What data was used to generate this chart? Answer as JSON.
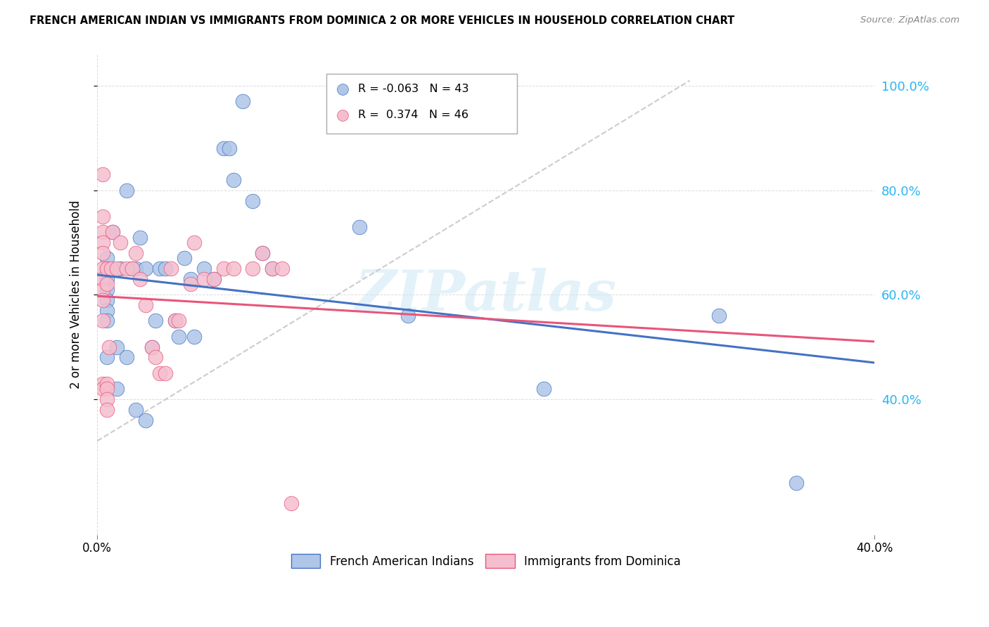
{
  "title": "FRENCH AMERICAN INDIAN VS IMMIGRANTS FROM DOMINICA 2 OR MORE VEHICLES IN HOUSEHOLD CORRELATION CHART",
  "source": "Source: ZipAtlas.com",
  "ylabel": "2 or more Vehicles in Household",
  "legend_blue_r": "R = -0.063",
  "legend_blue_n": "N = 43",
  "legend_pink_r": "R =  0.374",
  "legend_pink_n": "N = 46",
  "legend_blue_label": "French American Indians",
  "legend_pink_label": "Immigrants from Dominica",
  "blue_color": "#aec6e8",
  "blue_line_color": "#4472c4",
  "pink_color": "#f5bece",
  "pink_line_color": "#e8557a",
  "right_tick_color": "#29b6f6",
  "watermark": "ZIPatlas",
  "xlim": [
    0.0,
    0.4
  ],
  "ylim": [
    0.14,
    1.06
  ],
  "blue_x": [
    0.005,
    0.005,
    0.005,
    0.005,
    0.005,
    0.005,
    0.005,
    0.008,
    0.01,
    0.012,
    0.015,
    0.018,
    0.02,
    0.022,
    0.025,
    0.028,
    0.03,
    0.032,
    0.035,
    0.04,
    0.042,
    0.045,
    0.048,
    0.05,
    0.055,
    0.06,
    0.065,
    0.068,
    0.07,
    0.075,
    0.08,
    0.085,
    0.09,
    0.135,
    0.16,
    0.23,
    0.32,
    0.36,
    0.005,
    0.01,
    0.015,
    0.02,
    0.025
  ],
  "blue_y": [
    0.67,
    0.65,
    0.63,
    0.61,
    0.59,
    0.57,
    0.55,
    0.72,
    0.5,
    0.65,
    0.8,
    0.65,
    0.65,
    0.71,
    0.65,
    0.5,
    0.55,
    0.65,
    0.65,
    0.55,
    0.52,
    0.67,
    0.63,
    0.52,
    0.65,
    0.63,
    0.88,
    0.88,
    0.82,
    0.97,
    0.78,
    0.68,
    0.65,
    0.73,
    0.56,
    0.42,
    0.56,
    0.24,
    0.48,
    0.42,
    0.48,
    0.38,
    0.36
  ],
  "pink_x": [
    0.003,
    0.003,
    0.003,
    0.003,
    0.003,
    0.003,
    0.003,
    0.003,
    0.003,
    0.003,
    0.003,
    0.003,
    0.005,
    0.005,
    0.005,
    0.005,
    0.005,
    0.005,
    0.006,
    0.007,
    0.008,
    0.01,
    0.012,
    0.015,
    0.018,
    0.02,
    0.022,
    0.025,
    0.028,
    0.03,
    0.032,
    0.035,
    0.038,
    0.04,
    0.042,
    0.048,
    0.05,
    0.055,
    0.06,
    0.065,
    0.07,
    0.08,
    0.085,
    0.09,
    0.095,
    0.1
  ],
  "pink_y": [
    0.83,
    0.75,
    0.72,
    0.7,
    0.68,
    0.65,
    0.63,
    0.61,
    0.59,
    0.55,
    0.43,
    0.42,
    0.65,
    0.62,
    0.43,
    0.42,
    0.4,
    0.38,
    0.5,
    0.65,
    0.72,
    0.65,
    0.7,
    0.65,
    0.65,
    0.68,
    0.63,
    0.58,
    0.5,
    0.48,
    0.45,
    0.45,
    0.65,
    0.55,
    0.55,
    0.62,
    0.7,
    0.63,
    0.63,
    0.65,
    0.65,
    0.65,
    0.68,
    0.65,
    0.65,
    0.2
  ],
  "yticks": [
    0.4,
    0.6,
    0.8,
    1.0
  ],
  "ytick_labels": [
    "40.0%",
    "60.0%",
    "80.0%",
    "100.0%"
  ]
}
